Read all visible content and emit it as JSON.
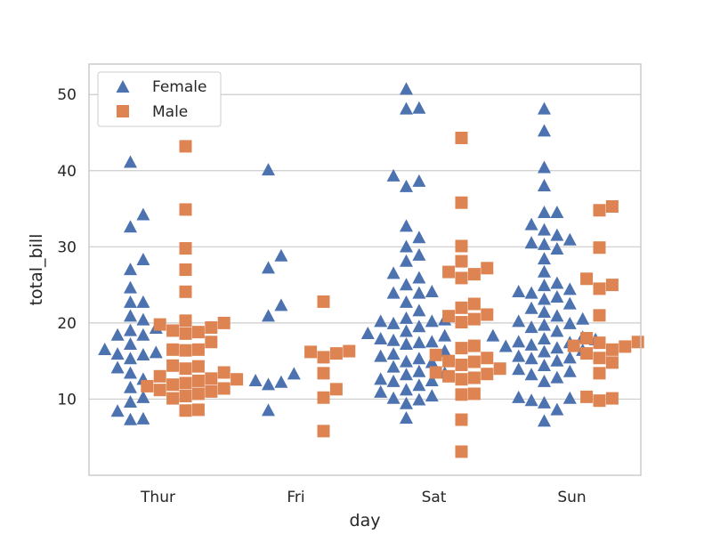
{
  "chart_data": {
    "type": "scatter",
    "title": "",
    "xlabel": "day",
    "ylabel": "total_bill",
    "categories": [
      "Thur",
      "Fri",
      "Sat",
      "Sun"
    ],
    "y_ticks": [
      10,
      20,
      30,
      40,
      50
    ],
    "ylim": [
      0,
      54
    ],
    "grid": "horizontal",
    "legend_position": "top-left",
    "series": [
      {
        "name": "Female",
        "marker": "triangle",
        "color": "#4c72b0",
        "data": {
          "Thur": [
            41.2,
            34.3,
            32.7,
            28.4,
            27.1,
            24.7,
            22.8,
            22.8,
            21.0,
            20.5,
            19.4,
            19.1,
            18.5,
            18.5,
            17.3,
            16.6,
            16.2,
            16.0,
            15.9,
            15.4,
            14.2,
            13.5,
            12.7,
            11.6,
            10.3,
            9.7,
            8.5,
            7.5,
            7.4
          ],
          "Fri": [
            40.2,
            28.9,
            27.3,
            22.4,
            21.0,
            13.4,
            12.3,
            12.0,
            12.5,
            8.6
          ],
          "Sat": [
            50.8,
            48.3,
            48.2,
            39.4,
            38.7,
            38.0,
            32.8,
            31.3,
            30.1,
            29.0,
            28.2,
            26.6,
            26.0,
            25.1,
            24.2,
            24.0,
            24.0,
            22.8,
            21.7,
            20.7,
            20.5,
            20.3,
            20.3,
            20.0,
            19.6,
            19.0,
            18.7,
            18.4,
            18.0,
            17.8,
            17.6,
            17.5,
            17.3,
            16.4,
            16.0,
            15.7,
            15.4,
            15.0,
            14.9,
            14.3,
            13.7,
            13.5,
            13.3,
            12.7,
            12.5,
            12.4,
            11.9,
            11.3,
            11.0,
            10.5,
            10.2,
            10.0,
            9.5,
            7.6
          ],
          "Sun": [
            48.2,
            45.3,
            40.5,
            38.1,
            34.6,
            34.6,
            33.0,
            32.3,
            31.6,
            31.0,
            30.6,
            30.4,
            29.8,
            28.5,
            26.8,
            25.3,
            25.0,
            24.5,
            24.2,
            24.0,
            23.5,
            23.2,
            22.6,
            22.0,
            21.5,
            21.0,
            20.6,
            20.3,
            20.0,
            19.8,
            19.5,
            19.0,
            18.4,
            18.2,
            18.0,
            17.9,
            17.6,
            17.5,
            17.2,
            17.0,
            16.8,
            16.5,
            16.3,
            15.7,
            15.5,
            15.4,
            15.1,
            14.5,
            14.0,
            13.7,
            13.3,
            12.9,
            12.4,
            10.3,
            10.2,
            9.9,
            9.6,
            8.7,
            7.2
          ]
        }
      },
      {
        "name": "Male",
        "marker": "square",
        "color": "#dd8452",
        "data": {
          "Thur": [
            43.2,
            34.9,
            29.8,
            27.0,
            24.1,
            20.3,
            20.0,
            19.8,
            19.4,
            19.0,
            18.8,
            18.6,
            17.5,
            16.5,
            16.5,
            16.4,
            14.4,
            14.3,
            14.0,
            13.5,
            13.0,
            12.7,
            12.6,
            12.4,
            12.1,
            11.9,
            11.7,
            11.4,
            11.2,
            11.0,
            10.7,
            10.4,
            10.1,
            8.6,
            8.5
          ],
          "Fri": [
            22.8,
            16.3,
            16.2,
            16.0,
            15.5,
            13.4,
            11.3,
            10.2,
            5.8
          ],
          "Sat": [
            44.3,
            35.8,
            30.1,
            28.1,
            27.2,
            26.7,
            26.4,
            25.9,
            22.5,
            22.0,
            21.1,
            20.9,
            20.5,
            20.1,
            17.0,
            16.7,
            15.8,
            15.4,
            15.0,
            14.9,
            14.5,
            14.0,
            13.5,
            13.3,
            13.0,
            12.8,
            12.6,
            10.7,
            10.6,
            7.3,
            3.1
          ],
          "Sun": [
            35.3,
            34.8,
            29.9,
            25.8,
            25.0,
            24.5,
            21.0,
            18.0,
            17.5,
            17.4,
            17.0,
            16.9,
            16.5,
            16.0,
            15.4,
            14.8,
            13.4,
            10.3,
            10.1,
            9.8
          ]
        }
      }
    ]
  }
}
